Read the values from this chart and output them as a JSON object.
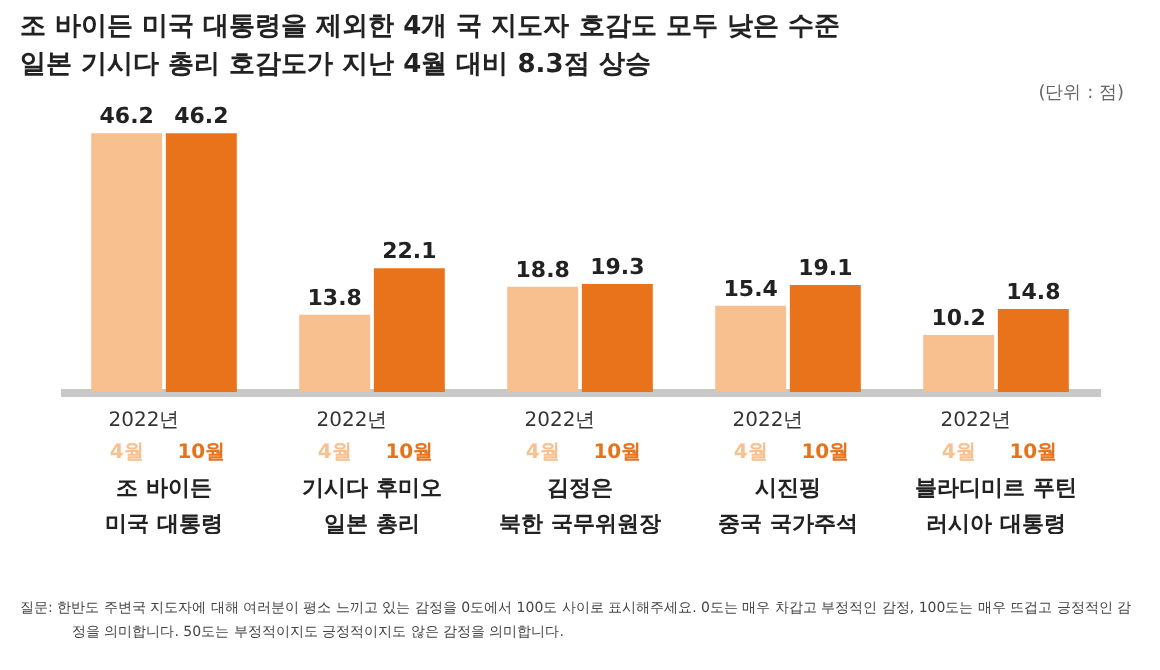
{
  "chart_data": {
    "type": "bar",
    "title": "조 바이든 미국 대통령을 제외한 4개 국 지도자 호감도 모두 낮은 수준",
    "subtitle": "일본 기시다 총리 호감도가 지난 4월 대비 8.3점 상승",
    "categories": [
      "조 바이든\n미국 대통령",
      "기시다 후미오\n일본 총리",
      "김정은\n북한 국무위원장",
      "시진핑\n중국 국가주석",
      "블라디미르 푸틴\n러시아 대통령"
    ],
    "legend_title": "2022년",
    "series": [
      {
        "name": "4월",
        "color": "#f9c08f",
        "values": [
          46.2,
          13.8,
          18.8,
          15.4,
          10.2
        ]
      },
      {
        "name": "10월",
        "color": "#e8731a",
        "values": [
          46.2,
          22.1,
          19.3,
          19.1,
          14.8
        ]
      }
    ],
    "data_labels": true,
    "annotations": [
      "(단위 : 점)",
      "질문: 한반도 주변국 지도자에 대해 여러분이 평소 느끼고 있는 감정을 0도에서 100도 사이로 표시해주세요. 0도는 매우 차갑고 부정적인 감정, 100도는 매우 뜨겁고 긍정적인 감정을 의미합니다. 50도는 부정적이지도 긍정적이지도 않은 감정을 의미합니다."
    ]
  }
}
